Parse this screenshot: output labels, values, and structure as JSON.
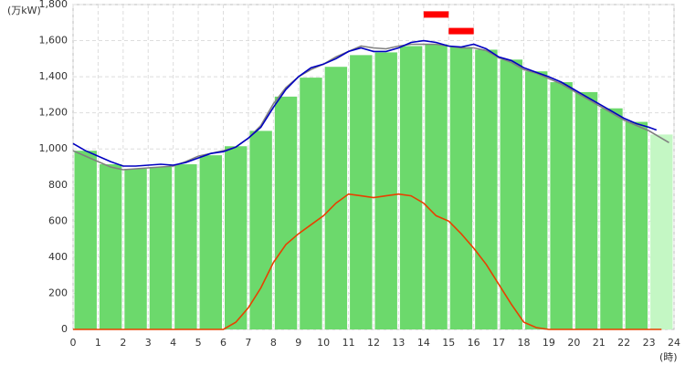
{
  "chart_data": {
    "type": "bar-line",
    "y_unit": "(万kW)",
    "x_unit": "(時)",
    "xlim": [
      0,
      24
    ],
    "xticks": [
      0,
      1,
      2,
      3,
      4,
      5,
      6,
      7,
      8,
      9,
      10,
      11,
      12,
      13,
      14,
      15,
      16,
      17,
      18,
      19,
      20,
      21,
      22,
      23,
      24
    ],
    "ylim": [
      0,
      1800
    ],
    "yticks": [
      0,
      200,
      400,
      600,
      800,
      {
        "value": 1000,
        "label": "1,000"
      },
      {
        "value": 1200,
        "label": "1,200"
      },
      {
        "value": 1400,
        "label": "1,400"
      },
      {
        "value": 1600,
        "label": "1,600"
      },
      {
        "value": 1800,
        "label": "1,800"
      }
    ],
    "grid": true,
    "bars": {
      "x": [
        0,
        1,
        2,
        3,
        4,
        5,
        6,
        7,
        8,
        9,
        10,
        11,
        12,
        13,
        14,
        15,
        16,
        17,
        18,
        19,
        20,
        21,
        22,
        23
      ],
      "values": [
        990,
        915,
        890,
        900,
        915,
        965,
        1015,
        1100,
        1290,
        1395,
        1455,
        1520,
        1535,
        1570,
        1580,
        1565,
        1550,
        1495,
        1430,
        1370,
        1315,
        1225,
        1150,
        1080
      ],
      "colors": [
        "#6cd96c",
        "#6cd96c",
        "#6cd96c",
        "#6cd96c",
        "#6cd96c",
        "#6cd96c",
        "#6cd96c",
        "#6cd96c",
        "#6cd96c",
        "#6cd96c",
        "#6cd96c",
        "#6cd96c",
        "#6cd96c",
        "#6cd96c",
        "#6cd96c",
        "#6cd96c",
        "#6cd96c",
        "#6cd96c",
        "#6cd96c",
        "#6cd96c",
        "#6cd96c",
        "#6cd96c",
        "#6cd96c",
        "#c4f7c4"
      ]
    },
    "series": [
      {
        "color": "#808080",
        "x": [
          0,
          0.5,
          1,
          1.5,
          2,
          2.5,
          3,
          3.5,
          4,
          4.5,
          5,
          5.5,
          6,
          6.5,
          7,
          7.5,
          8,
          8.5,
          9,
          9.5,
          10,
          10.5,
          11,
          11.5,
          12,
          12.5,
          13,
          13.5,
          14,
          14.5,
          15,
          15.5,
          16,
          16.5,
          17,
          17.5,
          18,
          18.5,
          19,
          19.5,
          20,
          20.5,
          21,
          21.5,
          22,
          22.5,
          23,
          23.5,
          23.8
        ],
        "values": [
          990,
          960,
          930,
          900,
          885,
          890,
          895,
          900,
          905,
          930,
          960,
          975,
          990,
          1010,
          1060,
          1130,
          1250,
          1340,
          1400,
          1440,
          1470,
          1510,
          1540,
          1570,
          1560,
          1555,
          1570,
          1580,
          1580,
          1580,
          1570,
          1560,
          1560,
          1545,
          1505,
          1480,
          1440,
          1420,
          1390,
          1360,
          1320,
          1280,
          1240,
          1200,
          1160,
          1130,
          1100,
          1060,
          1035
        ]
      },
      {
        "color": "#0000c0",
        "x": [
          0,
          0.5,
          1,
          1.5,
          2,
          2.5,
          3,
          3.5,
          4,
          4.5,
          5,
          5.5,
          6,
          6.5,
          7,
          7.5,
          8,
          8.5,
          9,
          9.5,
          10,
          10.5,
          11,
          11.5,
          12,
          12.5,
          13,
          13.5,
          14,
          14.5,
          15,
          15.5,
          16,
          16.5,
          17,
          17.5,
          18,
          18.5,
          19,
          19.5,
          20,
          20.5,
          21,
          21.5,
          22,
          22.5,
          23,
          23.3
        ],
        "values": [
          1030,
          990,
          960,
          930,
          905,
          905,
          910,
          915,
          910,
          925,
          950,
          975,
          985,
          1010,
          1060,
          1120,
          1230,
          1330,
          1400,
          1450,
          1470,
          1500,
          1540,
          1560,
          1540,
          1540,
          1560,
          1590,
          1600,
          1590,
          1570,
          1565,
          1580,
          1555,
          1510,
          1490,
          1450,
          1425,
          1400,
          1370,
          1330,
          1290,
          1250,
          1210,
          1170,
          1140,
          1120,
          1105
        ]
      },
      {
        "color": "#e84000",
        "x": [
          0,
          6,
          6.5,
          7,
          7.5,
          8,
          8.5,
          9,
          9.5,
          10,
          10.5,
          11,
          11.5,
          12,
          12.5,
          13,
          13.5,
          14,
          14.5,
          15,
          15.5,
          16,
          16.5,
          17,
          17.5,
          18,
          18.5,
          19,
          23.5
        ],
        "values": [
          0,
          0,
          40,
          120,
          230,
          370,
          470,
          530,
          580,
          630,
          700,
          750,
          740,
          730,
          740,
          750,
          740,
          700,
          630,
          600,
          530,
          450,
          360,
          250,
          140,
          40,
          10,
          0,
          0
        ]
      }
    ],
    "markers": [
      {
        "x": [
          14,
          15
        ],
        "value": 1745,
        "color": "#ff0000"
      },
      {
        "x": [
          15,
          16
        ],
        "value": 1653,
        "color": "#ff0000"
      }
    ]
  }
}
